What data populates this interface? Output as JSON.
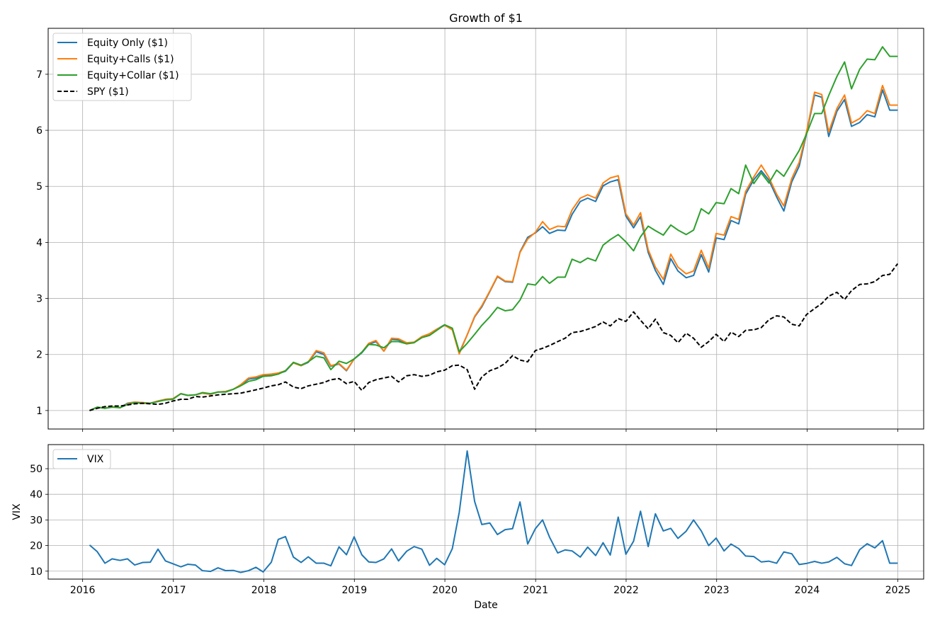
{
  "chart_data": [
    {
      "type": "line",
      "title": "Growth of $1",
      "xlabel": "",
      "ylabel": "",
      "xlim": [
        "2015-08-15",
        "2025-04-15"
      ],
      "ylim": [
        0.67,
        7.82
      ],
      "x_ticks": [
        "2016",
        "2017",
        "2018",
        "2019",
        "2020",
        "2021",
        "2022",
        "2023",
        "2024",
        "2025"
      ],
      "y_ticks": [
        1,
        2,
        3,
        4,
        5,
        6,
        7
      ],
      "grid": true,
      "legend_position": "top-left",
      "x": [
        "2016-01-29",
        "2016-02-29",
        "2016-03-31",
        "2016-04-29",
        "2016-05-31",
        "2016-06-30",
        "2016-07-29",
        "2016-08-31",
        "2016-09-30",
        "2016-10-31",
        "2016-11-30",
        "2016-12-30",
        "2017-01-31",
        "2017-02-28",
        "2017-03-31",
        "2017-04-28",
        "2017-05-31",
        "2017-06-30",
        "2017-07-31",
        "2017-08-31",
        "2017-09-29",
        "2017-10-31",
        "2017-11-30",
        "2017-12-29",
        "2018-01-31",
        "2018-02-28",
        "2018-03-29",
        "2018-04-30",
        "2018-05-31",
        "2018-06-29",
        "2018-07-31",
        "2018-08-31",
        "2018-09-28",
        "2018-10-31",
        "2018-11-30",
        "2018-12-31",
        "2019-01-31",
        "2019-02-28",
        "2019-03-29",
        "2019-04-30",
        "2019-05-31",
        "2019-06-28",
        "2019-07-31",
        "2019-08-30",
        "2019-09-30",
        "2019-10-31",
        "2019-11-29",
        "2019-12-31",
        "2020-01-31",
        "2020-02-28",
        "2020-03-31",
        "2020-04-30",
        "2020-05-29",
        "2020-06-30",
        "2020-07-31",
        "2020-08-31",
        "2020-09-30",
        "2020-10-30",
        "2020-11-30",
        "2020-12-31",
        "2021-01-29",
        "2021-02-26",
        "2021-03-31",
        "2021-04-30",
        "2021-05-28",
        "2021-06-30",
        "2021-07-30",
        "2021-08-31",
        "2021-09-30",
        "2021-10-29",
        "2021-11-30",
        "2021-12-31",
        "2022-01-31",
        "2022-02-28",
        "2022-03-31",
        "2022-04-29",
        "2022-05-31",
        "2022-06-30",
        "2022-07-29",
        "2022-08-31",
        "2022-09-30",
        "2022-10-31",
        "2022-11-30",
        "2022-12-30",
        "2023-01-31",
        "2023-02-28",
        "2023-03-31",
        "2023-04-28",
        "2023-05-31",
        "2023-06-30",
        "2023-07-31",
        "2023-08-31",
        "2023-09-29",
        "2023-10-31",
        "2023-11-30",
        "2023-12-29",
        "2024-01-31",
        "2024-02-29",
        "2024-03-28",
        "2024-04-30",
        "2024-05-31",
        "2024-06-28",
        "2024-07-31",
        "2024-08-30",
        "2024-09-30",
        "2024-10-31",
        "2024-11-29",
        "2024-12-31"
      ],
      "series": [
        {
          "name": "Equity Only ($1)",
          "color": "#1f77b4",
          "dash": "solid",
          "values": [
            1.0,
            1.06,
            1.04,
            1.07,
            1.05,
            1.13,
            1.15,
            1.14,
            1.13,
            1.17,
            1.2,
            1.21,
            1.3,
            1.27,
            1.28,
            1.31,
            1.29,
            1.33,
            1.34,
            1.38,
            1.45,
            1.56,
            1.58,
            1.62,
            1.63,
            1.66,
            1.7,
            1.85,
            1.8,
            1.86,
            2.05,
            2.0,
            1.79,
            1.83,
            1.71,
            1.92,
            2.03,
            2.18,
            2.23,
            2.06,
            2.27,
            2.26,
            2.19,
            2.22,
            2.31,
            2.37,
            2.45,
            2.53,
            2.46,
            2.03,
            2.35,
            2.67,
            2.85,
            3.12,
            3.39,
            3.3,
            3.29,
            3.83,
            4.09,
            4.17,
            4.28,
            4.16,
            4.22,
            4.21,
            4.5,
            4.73,
            4.79,
            4.73,
            5.01,
            5.08,
            5.12,
            4.47,
            4.26,
            4.46,
            3.82,
            3.5,
            3.25,
            3.71,
            3.49,
            3.37,
            3.41,
            3.78,
            3.47,
            4.08,
            4.05,
            4.39,
            4.33,
            4.86,
            5.12,
            5.28,
            5.11,
            4.81,
            4.56,
            5.08,
            5.36,
            5.93,
            6.63,
            6.59,
            5.89,
            6.34,
            6.55,
            6.07,
            6.14,
            6.28,
            6.24,
            6.72,
            6.36,
            6.36
          ]
        },
        {
          "name": "Equity+Calls ($1)",
          "color": "#ff7f0e",
          "dash": "solid",
          "values": [
            1.0,
            1.06,
            1.04,
            1.07,
            1.05,
            1.12,
            1.15,
            1.14,
            1.13,
            1.17,
            1.2,
            1.21,
            1.3,
            1.27,
            1.28,
            1.31,
            1.29,
            1.33,
            1.34,
            1.38,
            1.46,
            1.58,
            1.6,
            1.64,
            1.65,
            1.67,
            1.71,
            1.85,
            1.8,
            1.87,
            2.07,
            2.03,
            1.8,
            1.84,
            1.72,
            1.92,
            2.04,
            2.2,
            2.25,
            2.06,
            2.29,
            2.28,
            2.21,
            2.22,
            2.32,
            2.37,
            2.45,
            2.52,
            2.44,
            2.01,
            2.35,
            2.68,
            2.87,
            3.13,
            3.4,
            3.31,
            3.3,
            3.82,
            4.06,
            4.18,
            4.37,
            4.23,
            4.29,
            4.28,
            4.58,
            4.79,
            4.85,
            4.79,
            5.06,
            5.15,
            5.19,
            4.51,
            4.31,
            4.53,
            3.87,
            3.56,
            3.34,
            3.79,
            3.56,
            3.44,
            3.49,
            3.86,
            3.54,
            4.16,
            4.13,
            4.46,
            4.41,
            4.91,
            5.17,
            5.38,
            5.16,
            4.86,
            4.65,
            5.14,
            5.43,
            5.96,
            6.68,
            6.64,
            5.97,
            6.39,
            6.63,
            6.13,
            6.21,
            6.35,
            6.3,
            6.8,
            6.45,
            6.45
          ]
        },
        {
          "name": "Equity+Collar ($1)",
          "color": "#2ca02c",
          "dash": "solid",
          "values": [
            1.0,
            1.06,
            1.04,
            1.06,
            1.05,
            1.11,
            1.14,
            1.13,
            1.13,
            1.16,
            1.19,
            1.2,
            1.3,
            1.27,
            1.28,
            1.32,
            1.3,
            1.33,
            1.33,
            1.38,
            1.44,
            1.52,
            1.55,
            1.61,
            1.62,
            1.65,
            1.71,
            1.86,
            1.81,
            1.87,
            1.97,
            1.94,
            1.73,
            1.88,
            1.84,
            1.92,
            2.04,
            2.18,
            2.17,
            2.12,
            2.23,
            2.23,
            2.19,
            2.21,
            2.3,
            2.34,
            2.43,
            2.53,
            2.47,
            2.05,
            2.2,
            2.36,
            2.52,
            2.67,
            2.84,
            2.78,
            2.8,
            2.97,
            3.26,
            3.24,
            3.39,
            3.27,
            3.38,
            3.38,
            3.7,
            3.64,
            3.72,
            3.67,
            3.95,
            4.05,
            4.14,
            4.01,
            3.85,
            4.1,
            4.29,
            4.21,
            4.13,
            4.31,
            4.22,
            4.14,
            4.22,
            4.6,
            4.51,
            4.71,
            4.69,
            4.96,
            4.87,
            5.38,
            5.05,
            5.24,
            5.06,
            5.29,
            5.18,
            5.42,
            5.64,
            5.93,
            6.3,
            6.3,
            6.62,
            6.96,
            7.22,
            6.74,
            7.09,
            7.27,
            7.26,
            7.49,
            7.32,
            7.32
          ]
        },
        {
          "name": "SPY ($1)",
          "color": "#000000",
          "dash": "dashed",
          "values": [
            1.0,
            1.04,
            1.07,
            1.08,
            1.08,
            1.1,
            1.12,
            1.13,
            1.12,
            1.11,
            1.13,
            1.17,
            1.2,
            1.2,
            1.25,
            1.24,
            1.26,
            1.28,
            1.29,
            1.3,
            1.31,
            1.34,
            1.37,
            1.4,
            1.44,
            1.46,
            1.51,
            1.42,
            1.39,
            1.44,
            1.47,
            1.5,
            1.55,
            1.57,
            1.48,
            1.52,
            1.36,
            1.5,
            1.55,
            1.58,
            1.61,
            1.51,
            1.62,
            1.64,
            1.61,
            1.63,
            1.69,
            1.72,
            1.8,
            1.81,
            1.73,
            1.38,
            1.6,
            1.71,
            1.76,
            1.84,
            1.98,
            1.9,
            1.87,
            2.07,
            2.11,
            2.16,
            2.23,
            2.29,
            2.39,
            2.41,
            2.45,
            2.5,
            2.58,
            2.51,
            2.64,
            2.59,
            2.76,
            2.61,
            2.46,
            2.63,
            2.39,
            2.34,
            2.21,
            2.38,
            2.29,
            2.13,
            2.23,
            2.36,
            2.23,
            2.4,
            2.32,
            2.43,
            2.44,
            2.48,
            2.62,
            2.69,
            2.67,
            2.54,
            2.51,
            2.71,
            2.82,
            2.91,
            3.04,
            3.11,
            2.98,
            3.14,
            3.25,
            3.26,
            3.3,
            3.41,
            3.43,
            3.62
          ]
        }
      ]
    },
    {
      "type": "line",
      "title": "",
      "xlabel": "Date",
      "ylabel": "VIX",
      "xlim": [
        "2015-08-15",
        "2025-04-15"
      ],
      "ylim": [
        6.9,
        59.4
      ],
      "x_ticks": [
        "2016",
        "2017",
        "2018",
        "2019",
        "2020",
        "2021",
        "2022",
        "2023",
        "2024",
        "2025"
      ],
      "y_ticks": [
        10,
        20,
        30,
        40,
        50
      ],
      "grid": true,
      "legend_position": "top-left",
      "x": [
        "2016-01-29",
        "2016-02-29",
        "2016-03-31",
        "2016-04-29",
        "2016-05-31",
        "2016-06-30",
        "2016-07-29",
        "2016-08-31",
        "2016-09-30",
        "2016-10-31",
        "2016-11-30",
        "2016-12-30",
        "2017-01-31",
        "2017-02-28",
        "2017-03-31",
        "2017-04-28",
        "2017-05-31",
        "2017-06-30",
        "2017-07-31",
        "2017-08-31",
        "2017-09-29",
        "2017-10-31",
        "2017-11-30",
        "2017-12-29",
        "2018-01-31",
        "2018-02-28",
        "2018-03-29",
        "2018-04-30",
        "2018-05-31",
        "2018-06-29",
        "2018-07-31",
        "2018-08-31",
        "2018-09-28",
        "2018-10-31",
        "2018-11-30",
        "2018-12-31",
        "2019-01-31",
        "2019-02-28",
        "2019-03-29",
        "2019-04-30",
        "2019-05-31",
        "2019-06-28",
        "2019-07-31",
        "2019-08-30",
        "2019-09-30",
        "2019-10-31",
        "2019-11-29",
        "2019-12-31",
        "2020-01-31",
        "2020-02-28",
        "2020-03-31",
        "2020-04-30",
        "2020-05-29",
        "2020-06-30",
        "2020-07-31",
        "2020-08-31",
        "2020-09-30",
        "2020-10-30",
        "2020-11-30",
        "2020-12-31",
        "2021-01-29",
        "2021-02-26",
        "2021-03-31",
        "2021-04-30",
        "2021-05-28",
        "2021-06-30",
        "2021-07-30",
        "2021-08-31",
        "2021-09-30",
        "2021-10-29",
        "2021-11-30",
        "2021-12-31",
        "2022-01-31",
        "2022-02-28",
        "2022-03-31",
        "2022-04-29",
        "2022-05-31",
        "2022-06-30",
        "2022-07-29",
        "2022-08-31",
        "2022-09-30",
        "2022-10-31",
        "2022-11-30",
        "2022-12-30",
        "2023-01-31",
        "2023-02-28",
        "2023-03-31",
        "2023-04-28",
        "2023-05-31",
        "2023-06-30",
        "2023-07-31",
        "2023-08-31",
        "2023-09-29",
        "2023-10-31",
        "2023-11-30",
        "2023-12-29",
        "2024-01-31",
        "2024-02-29",
        "2024-03-28",
        "2024-04-30",
        "2024-05-31",
        "2024-06-28",
        "2024-07-31",
        "2024-08-30",
        "2024-09-30",
        "2024-10-31",
        "2024-11-29",
        "2024-12-31"
      ],
      "series": [
        {
          "name": "VIX",
          "color": "#1f77b4",
          "dash": "solid",
          "values": [
            20.2,
            17.6,
            13.1,
            14.8,
            14.2,
            14.8,
            12.4,
            13.4,
            13.5,
            18.6,
            14.0,
            12.9,
            11.7,
            12.7,
            12.4,
            10.2,
            9.9,
            11.3,
            10.2,
            10.3,
            9.5,
            10.2,
            11.5,
            9.7,
            13.5,
            22.4,
            23.5,
            15.5,
            13.4,
            15.6,
            13.1,
            13.1,
            12.1,
            19.5,
            16.4,
            23.4,
            16.4,
            13.6,
            13.4,
            14.8,
            18.7,
            14.0,
            17.8,
            19.6,
            18.6,
            12.3,
            15.0,
            12.5,
            18.8,
            33.0,
            56.9,
            37.2,
            28.2,
            28.8,
            24.3,
            26.2,
            26.6,
            37.0,
            20.6,
            26.6,
            30.0,
            23.3,
            17.1,
            18.3,
            17.9,
            15.5,
            19.4,
            16.1,
            21.1,
            16.3,
            31.1,
            16.6,
            21.7,
            33.4,
            19.6,
            32.4,
            25.7,
            26.7,
            22.8,
            25.6,
            30.0,
            25.7,
            20.0,
            22.9,
            17.9,
            20.6,
            18.8,
            15.9,
            15.7,
            13.6,
            13.9,
            13.1,
            17.5,
            16.8,
            12.6,
            13.0,
            13.8,
            13.1,
            13.6,
            15.4,
            12.9,
            12.2,
            18.4,
            20.7,
            19.1,
            21.9,
            13.1,
            13.1
          ]
        }
      ]
    }
  ]
}
